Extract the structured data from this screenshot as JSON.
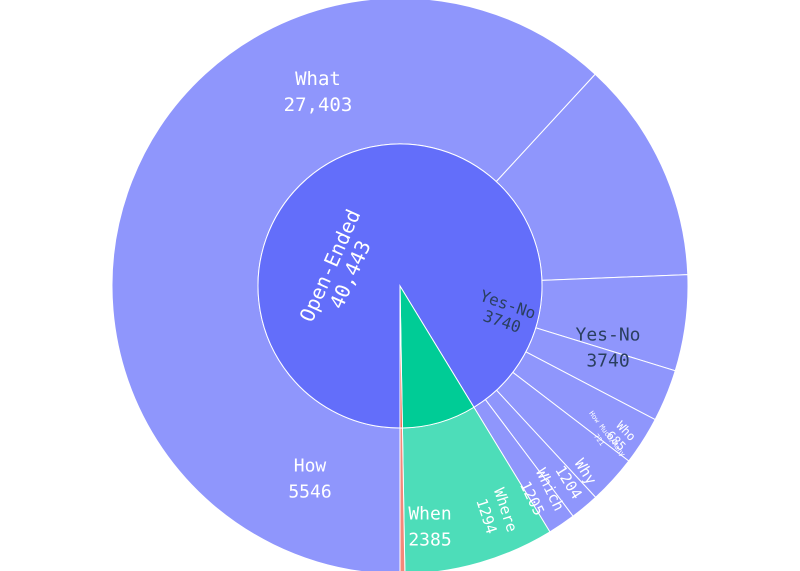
{
  "chart_data": {
    "type": "sunburst",
    "colors": {
      "open_ended_inner": "#636efa",
      "open_ended_outer": "#8f96fc",
      "yes_no_inner": "#00cc96",
      "yes_no_outer": "#4dddb9",
      "other": "#ef553b",
      "other_outer": "#f4887a",
      "border": "#ffffff",
      "label_light": "#ffffff",
      "label_dark": "#2a3f5f"
    },
    "inner": [
      {
        "label": "Open-Ended",
        "value_text": "40,443",
        "value": 40443
      },
      {
        "label": "Yes-No",
        "value_text": "3740",
        "value": 3740
      },
      {
        "label": "",
        "value_text": "",
        "value": 120
      }
    ],
    "outer": [
      {
        "parent": 0,
        "label": "What",
        "value_text": "27,403",
        "value": 27403
      },
      {
        "parent": 0,
        "label": "How",
        "value_text": "5546",
        "value": 5546
      },
      {
        "parent": 0,
        "label": "When",
        "value_text": "2385",
        "value": 2385
      },
      {
        "parent": 0,
        "label": "Where",
        "value_text": "1294",
        "value": 1294
      },
      {
        "parent": 0,
        "label": "Which",
        "value_text": "1205",
        "value": 1205
      },
      {
        "parent": 0,
        "label": "Why",
        "value_text": "1204",
        "value": 1204
      },
      {
        "parent": 0,
        "label": "How Much/Many",
        "value_text": "721",
        "value": 721
      },
      {
        "parent": 0,
        "label": "Who",
        "value_text": "685",
        "value": 685
      },
      {
        "parent": 1,
        "label": "Yes-No",
        "value_text": "3740",
        "value": 3740
      },
      {
        "parent": 2,
        "label": "",
        "value_text": "",
        "value": 120
      }
    ]
  }
}
